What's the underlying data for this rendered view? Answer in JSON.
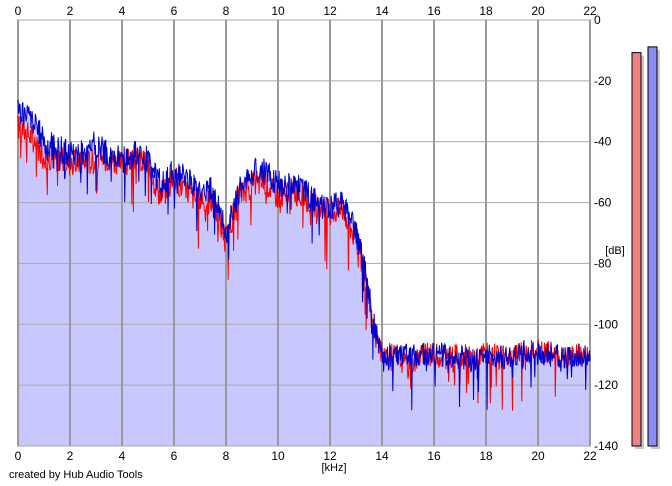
{
  "footer": "created by Hub Audio Tools",
  "chart_data": {
    "type": "line",
    "xlabel": "[kHz]",
    "ylabel": "[dB]",
    "xlim": [
      0,
      22
    ],
    "ylim": [
      -140,
      0
    ],
    "x_ticks": [
      "0",
      "2",
      "4",
      "6",
      "8",
      "10",
      "12",
      "14",
      "16",
      "18",
      "20",
      "22"
    ],
    "y_ticks": [
      "0",
      "-20",
      "-40",
      "-60",
      "-80",
      "-100",
      "-120",
      "-140"
    ],
    "grid": true,
    "colors": {
      "fill": "#c8c8ff",
      "left_channel": "#ff0000",
      "right_channel": "#0000cc",
      "grid": "#999999",
      "meter_left": "#ef8080",
      "meter_right": "#8c8cf2"
    },
    "series": [
      {
        "color": "#ff0000",
        "x": [
          0,
          0.5,
          1,
          1.5,
          2,
          2.5,
          3,
          3.5,
          4,
          4.5,
          5,
          5.5,
          6,
          6.5,
          7,
          7.5,
          8,
          8.5,
          9,
          9.5,
          10,
          10.5,
          11,
          11.5,
          12,
          12.5,
          13,
          13.3,
          13.6,
          14,
          14.5,
          15,
          15.5,
          16,
          16.5,
          17,
          17.5,
          18,
          18.5,
          19,
          19.5,
          20,
          20.5,
          21,
          21.5,
          22
        ],
        "values": [
          -35,
          -38,
          -45,
          -45,
          -47,
          -47,
          -46,
          -45,
          -48,
          -45,
          -48,
          -58,
          -52,
          -56,
          -60,
          -60,
          -72,
          -58,
          -54,
          -53,
          -58,
          -56,
          -58,
          -62,
          -63,
          -62,
          -72,
          -82,
          -98,
          -110,
          -110,
          -114,
          -110,
          -110,
          -111,
          -110,
          -111,
          -109,
          -111,
          -110,
          -109,
          -109,
          -109,
          -111,
          -110,
          -110
        ]
      },
      {
        "color": "#0000cc",
        "x": [
          0,
          0.5,
          1,
          1.5,
          2,
          2.5,
          3,
          3.5,
          4,
          4.5,
          5,
          5.5,
          6,
          6.5,
          7,
          7.5,
          8,
          8.5,
          9,
          9.5,
          10,
          10.5,
          11,
          11.5,
          12,
          12.5,
          13,
          13.3,
          13.6,
          14,
          14.5,
          15,
          15.5,
          16,
          16.5,
          17,
          17.5,
          18,
          18.5,
          19,
          19.5,
          20,
          20.5,
          21,
          21.5,
          22
        ],
        "values": [
          -30,
          -32,
          -40,
          -42,
          -44,
          -44,
          -40,
          -45,
          -46,
          -44,
          -46,
          -54,
          -50,
          -52,
          -56,
          -56,
          -70,
          -56,
          -50,
          -50,
          -54,
          -54,
          -56,
          -60,
          -62,
          -60,
          -70,
          -80,
          -96,
          -112,
          -110,
          -110,
          -110,
          -110,
          -110,
          -111,
          -112,
          -110,
          -111,
          -110,
          -109,
          -110,
          -110,
          -111,
          -110,
          -112
        ]
      }
    ],
    "level_meters": [
      {
        "channel": "left",
        "value": -3
      },
      {
        "channel": "right",
        "value": -1
      }
    ]
  }
}
